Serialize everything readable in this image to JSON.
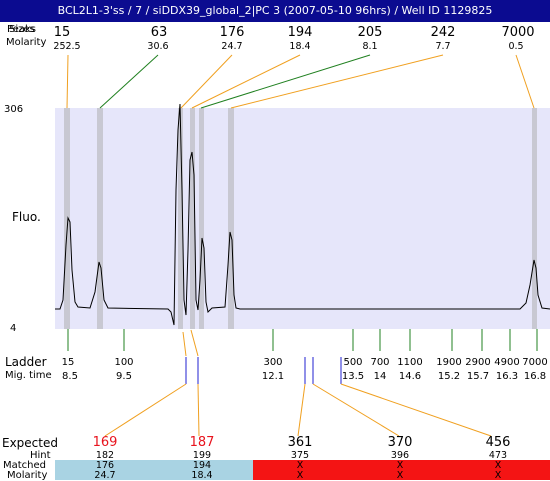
{
  "title": "BCL2L1-3'ss / 7 / siDDX39_global_2|PC 3 (2007-05-10 96hrs) / Well ID 1129825",
  "header": {
    "row1_label": "Peaks",
    "row1_label_overlay": "Sizes",
    "row2_label": "Molarity",
    "peaks": [
      {
        "size": "15",
        "molarity": "252.5"
      },
      {
        "size": "63",
        "molarity": "30.6"
      },
      {
        "size": "176",
        "molarity": "24.7"
      },
      {
        "size": "194",
        "molarity": "18.4"
      },
      {
        "size": "205",
        "molarity": "8.1"
      },
      {
        "size": "242",
        "molarity": "7.7"
      },
      {
        "size": "7000",
        "molarity": "0.5"
      }
    ]
  },
  "electropherogram": {
    "y_top_label": "306",
    "y_bottom_label": "4",
    "y_axis_label": "Fluo.",
    "background_color": "#e6e6fa",
    "peak_marker_color": "#c8c8d2",
    "trace_color": "#000000"
  },
  "ladder": {
    "label": "Ladder",
    "mig_label": "Mig. time",
    "bands": [
      {
        "size": "15",
        "mig": "8.5"
      },
      {
        "size": "100",
        "mig": "9.5"
      },
      {
        "size": "300",
        "mig": "12.1"
      },
      {
        "size": "500",
        "mig": "13.5"
      },
      {
        "size": "700",
        "mig": "14"
      },
      {
        "size": "1100",
        "mig": "14.6"
      },
      {
        "size": "1900",
        "mig": "15.2"
      },
      {
        "size": "2900",
        "mig": "15.7"
      },
      {
        "size": "4900",
        "mig": "16.3"
      },
      {
        "size": "7000",
        "mig": "16.8"
      }
    ]
  },
  "expected": {
    "expected_label": "Expected",
    "hint_label": "Hint",
    "matched_label": "Matched",
    "molarity_label": "Molarity",
    "columns": [
      {
        "expected": "169",
        "hint": "182",
        "matched": "176",
        "molarity": "24.7",
        "status": "matched"
      },
      {
        "expected": "187",
        "hint": "199",
        "matched": "194",
        "molarity": "18.4",
        "status": "matched"
      },
      {
        "expected": "361",
        "hint": "375",
        "matched": "X",
        "molarity": "X",
        "status": "unmatched"
      },
      {
        "expected": "370",
        "hint": "396",
        "matched": "X",
        "molarity": "X",
        "status": "unmatched"
      },
      {
        "expected": "456",
        "hint": "473",
        "matched": "X",
        "molarity": "X",
        "status": "unmatched"
      }
    ],
    "colors": {
      "matched_bg": "#a9d3e3",
      "unmatched_bg": "#f41414",
      "expected_matched_text": "#e8141e",
      "connector": "#f0a020",
      "hint_tick": "#2020d0",
      "ladder_tick": "#208020"
    }
  }
}
